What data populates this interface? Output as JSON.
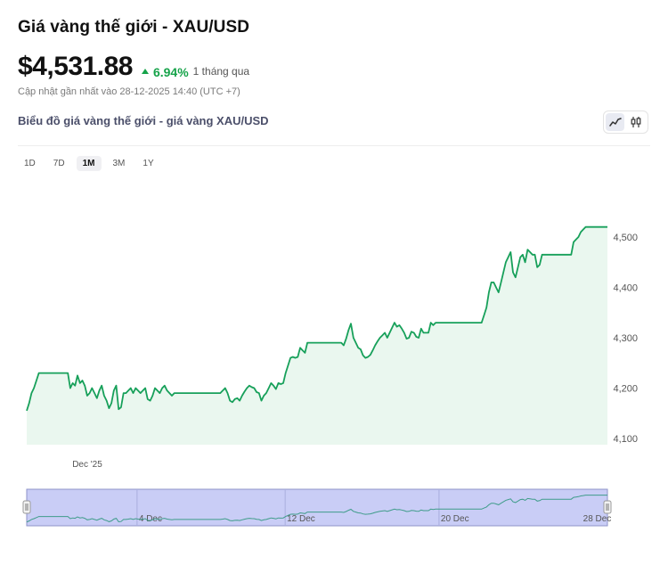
{
  "header": {
    "title": "Giá vàng thế giới - XAU/USD",
    "price": "$4,531.88",
    "change_pct": "6.94%",
    "change_direction": "up",
    "change_period": "1 tháng qua",
    "updated": "Cập nhật gần nhất vào 28-12-2025 14:40 (UTC +7)"
  },
  "chart_section": {
    "subtitle": "Biểu đồ giá vàng thế giới - giá vàng XAU/USD",
    "view_toggle": [
      {
        "icon": "line-chart-icon",
        "active": true
      },
      {
        "icon": "candlestick-icon",
        "active": false
      }
    ],
    "ranges": [
      {
        "label": "1D",
        "active": false
      },
      {
        "label": "7D",
        "active": false
      },
      {
        "label": "1M",
        "active": true
      },
      {
        "label": "3M",
        "active": false
      },
      {
        "label": "1Y",
        "active": false
      }
    ]
  },
  "colors": {
    "line": "#17a05a",
    "area": "#eaf7ef",
    "positive": "#16a34a",
    "navigator_fill": "#c9cdf6",
    "navigator_border": "#8e93c8",
    "navigator_line": "#3f9c8a"
  },
  "chart_data": {
    "type": "area",
    "title": "",
    "xlabel": "",
    "ylabel": "",
    "ylim": [
      4100,
      4570
    ],
    "y_ticks": [
      "4,100",
      "4,200",
      "4,300",
      "4,400",
      "4,500"
    ],
    "y_tick_values": [
      4100,
      4200,
      4300,
      4400,
      4500
    ],
    "y_axis_position": "right",
    "x_tick_labels": [
      "Dec '25"
    ],
    "x_tick_values": [
      9
    ],
    "grid": false,
    "legend": "none",
    "x_unit": "step",
    "series": [
      {
        "values": [
          4155,
          4170,
          4190,
          4200,
          4215,
          4230,
          4230,
          4230,
          4230,
          4230,
          4230,
          4230,
          4230,
          4230,
          4230,
          4230,
          4230,
          4230,
          4200,
          4210,
          4205,
          4225,
          4210,
          4215,
          4205,
          4185,
          4190,
          4200,
          4190,
          4180,
          4195,
          4205,
          4185,
          4175,
          4160,
          4170,
          4195,
          4205,
          4158,
          4162,
          4190,
          4190,
          4195,
          4200,
          4190,
          4200,
          4195,
          4190,
          4195,
          4200,
          4178,
          4175,
          4185,
          4200,
          4195,
          4190,
          4200,
          4205,
          4195,
          4190,
          4185,
          4190,
          4190,
          4190,
          4190,
          4190,
          4190,
          4190,
          4190,
          4190,
          4190,
          4190,
          4190,
          4190,
          4190,
          4190,
          4190,
          4190,
          4190,
          4190,
          4190,
          4195,
          4200,
          4190,
          4175,
          4172,
          4178,
          4180,
          4175,
          4185,
          4193,
          4200,
          4205,
          4202,
          4200,
          4192,
          4190,
          4175,
          4185,
          4190,
          4200,
          4210,
          4205,
          4198,
          4210,
          4208,
          4210,
          4230,
          4245,
          4260,
          4262,
          4260,
          4262,
          4280,
          4275,
          4270,
          4290,
          4290,
          4290,
          4290,
          4290,
          4290,
          4290,
          4290,
          4290,
          4290,
          4290,
          4290,
          4290,
          4290,
          4290,
          4285,
          4298,
          4315,
          4328,
          4300,
          4290,
          4280,
          4277,
          4265,
          4260,
          4262,
          4266,
          4275,
          4285,
          4293,
          4300,
          4305,
          4310,
          4300,
          4310,
          4320,
          4330,
          4322,
          4325,
          4318,
          4310,
          4298,
          4300,
          4312,
          4310,
          4302,
          4300,
          4318,
          4310,
          4310,
          4310,
          4330,
          4325,
          4330,
          4330,
          4330,
          4330,
          4330,
          4330,
          4330,
          4330,
          4330,
          4330,
          4330,
          4330,
          4330,
          4330,
          4330,
          4330,
          4330,
          4330,
          4330,
          4330,
          4345,
          4360,
          4390,
          4410,
          4410,
          4400,
          4390,
          4410,
          4430,
          4450,
          4460,
          4470,
          4430,
          4420,
          4440,
          4460,
          4465,
          4450,
          4475,
          4470,
          4465,
          4465,
          4440,
          4445,
          4465,
          4465,
          4465,
          4465,
          4465,
          4465,
          4465,
          4465,
          4465,
          4465,
          4465,
          4465,
          4465,
          4490,
          4495,
          4500,
          4510,
          4515,
          4520,
          4520,
          4520,
          4520,
          4520,
          4520,
          4520,
          4520,
          4520,
          4520
        ]
      }
    ],
    "navigator": {
      "labels": [
        "4 Dec",
        "12 Dec",
        "20 Dec",
        "28 Dec"
      ],
      "label_values": [
        38,
        89,
        142,
        191
      ]
    }
  }
}
